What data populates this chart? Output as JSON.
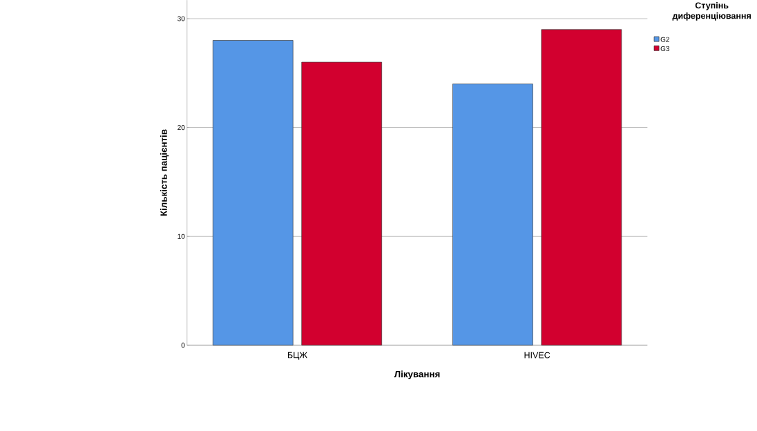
{
  "chart_data": {
    "type": "bar",
    "xlabel": "Лікування",
    "ylabel": "Кількість пацієнтів",
    "legend_title": "Ступінь диференціювання",
    "categories": [
      "БЦЖ",
      "HIVEC"
    ],
    "series": [
      {
        "name": "G2",
        "color": "#5596e6",
        "values": [
          28,
          24
        ]
      },
      {
        "name": "G3",
        "color": "#d2002f",
        "values": [
          26,
          29
        ]
      }
    ],
    "ylim": [
      0,
      31.7
    ],
    "yticks": [
      0,
      10,
      20,
      30
    ],
    "grid": "y",
    "legend": "top right"
  }
}
